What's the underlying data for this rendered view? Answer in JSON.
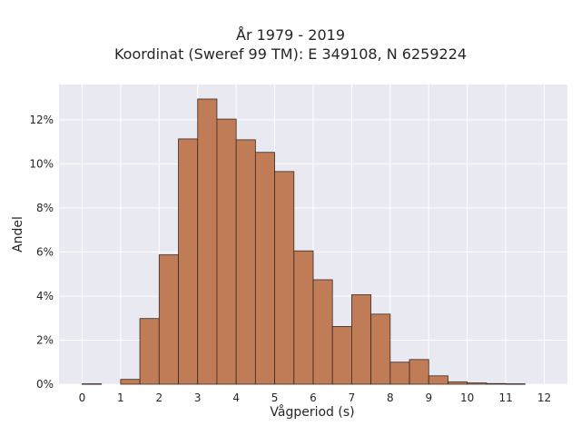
{
  "chart_data": {
    "type": "bar",
    "title": "År 1979 - 2019",
    "subtitle": "Koordinat (Sweref 99 TM): E 349108, N 6259224",
    "xlabel": "Vågperiod (s)",
    "ylabel": "Andel",
    "bin_width": 0.5,
    "bins_start": [
      0,
      1,
      1.5,
      2,
      2.5,
      3,
      3.5,
      4,
      4.5,
      5,
      5.5,
      6,
      6.5,
      7,
      7.5,
      8,
      8.5,
      9,
      9.5,
      10,
      10.5,
      11
    ],
    "values": [
      0.02,
      0.22,
      2.98,
      5.87,
      11.13,
      12.94,
      12.03,
      11.09,
      10.52,
      9.65,
      6.05,
      4.74,
      2.62,
      4.06,
      3.18,
      1.0,
      1.12,
      0.38,
      0.11,
      0.06,
      0.03,
      0.02
    ],
    "xticks": [
      "0",
      "1",
      "2",
      "3",
      "4",
      "5",
      "6",
      "7",
      "8",
      "9",
      "10",
      "11",
      "12"
    ],
    "xlim": [
      -0.6,
      12.6
    ],
    "yticks": [
      "0%",
      "2%",
      "4%",
      "6%",
      "8%",
      "10%",
      "12%"
    ],
    "ytick_values": [
      0,
      2,
      4,
      6,
      8,
      10,
      12
    ],
    "ylim": [
      0,
      13.6
    ],
    "grid": true,
    "colors": {
      "bar": "#c07c56",
      "edge": "#3a2a22",
      "plot_bg": "#e9e9f1",
      "grid": "#ffffff"
    }
  }
}
